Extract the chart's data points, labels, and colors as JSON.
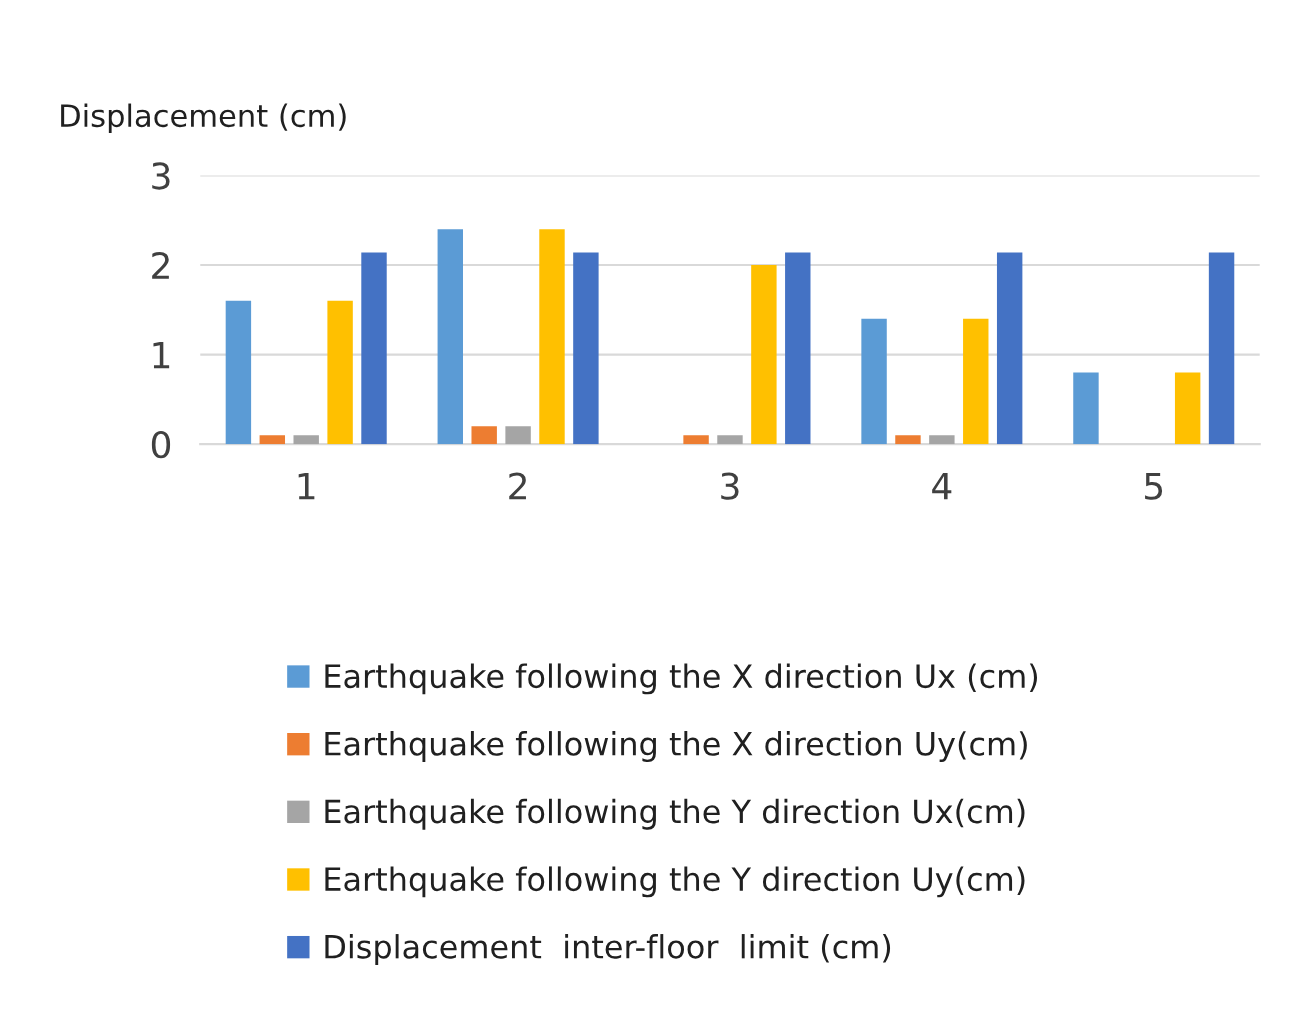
{
  "chart_data": {
    "type": "bar",
    "ylabel": "Displacement (cm)",
    "categories": [
      "1",
      "2",
      "3",
      "4",
      "5"
    ],
    "series": [
      {
        "name": "Earthquake following the X direction Ux (cm)",
        "color": "#5b9bd5",
        "values": [
          1.6,
          2.4,
          0,
          1.4,
          0.8
        ]
      },
      {
        "name": "Earthquake following the X direction Uy(cm)",
        "color": "#ed7d31",
        "values": [
          0.1,
          0.2,
          0.1,
          0.1,
          0
        ]
      },
      {
        "name": "Earthquake following the Y direction Ux(cm)",
        "color": "#a5a5a5",
        "values": [
          0.1,
          0.2,
          0.1,
          0.1,
          0
        ]
      },
      {
        "name": "Earthquake following the Y direction Uy(cm)",
        "color": "#ffc000",
        "values": [
          1.6,
          2.4,
          2.0,
          1.4,
          0.8
        ]
      },
      {
        "name": "Displacement  inter-floor  limit (cm)",
        "color": "#4472c4",
        "values": [
          2.14,
          2.14,
          2.14,
          2.14,
          2.14
        ]
      }
    ],
    "ylim": [
      0,
      3
    ],
    "yticks": [
      0,
      1,
      2,
      3
    ],
    "grid": "y",
    "legend": "bottom"
  }
}
